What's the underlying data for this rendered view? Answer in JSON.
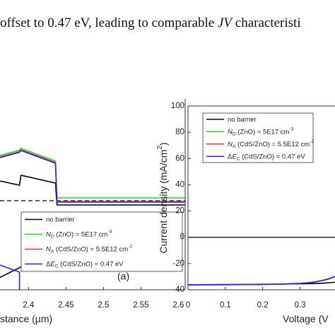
{
  "caption": [
    {
      "text": "offset to 0.47 eV, leading to comparable "
    },
    {
      "text": "JV",
      "style": "italic"
    },
    {
      "text": " characteristi"
    }
  ],
  "chart_data": [
    {
      "type": "line",
      "xlabel": [
        {
          "text": "stance (µm)"
        }
      ],
      "panel_label": "(a)",
      "xlim": [
        2.362,
        2.609
      ],
      "ylim": [
        -4.0,
        1.4
      ],
      "xticks": [
        2.4,
        2.45,
        2.5,
        2.55,
        2.6
      ],
      "hlines": [
        {
          "value": -1.48,
          "color": "#000000",
          "style": "dashed"
        }
      ],
      "legend": "lower right",
      "series": [
        {
          "name": [
            {
              "text": "no barrier"
            }
          ],
          "color": "#000000",
          "x": [
            2.362,
            2.388,
            2.39,
            2.436,
            2.438,
            2.609,
            null,
            2.362,
            2.4
          ],
          "values": [
            -0.92,
            -1.04,
            -0.76,
            -0.98,
            -1.6,
            -1.6,
            null,
            -3.65,
            -3.25
          ]
        },
        {
          "name": [
            {
              "text": "N",
              "style": "italic"
            },
            {
              "text": "D",
              "style": "sub"
            },
            {
              "text": " (ZnO) = 5E17 cm"
            },
            {
              "text": "-3",
              "style": "sup"
            }
          ],
          "color": "#22dd22",
          "x": [
            2.362,
            2.388,
            2.39,
            2.436,
            2.438,
            2.609
          ],
          "values": [
            -0.2,
            -0.05,
            0.0,
            -0.36,
            -1.4,
            -1.4
          ]
        },
        {
          "name": [
            {
              "text": "N",
              "style": "italic"
            },
            {
              "text": "A",
              "style": "sub"
            },
            {
              "text": " (CdS/ZnO) = 5.5E12 cm"
            },
            {
              "text": "-2",
              "style": "sup"
            }
          ],
          "color": "#ff3030",
          "x": [
            2.362,
            2.388,
            2.39,
            2.436,
            2.438,
            2.609
          ],
          "values": [
            -0.24,
            -0.09,
            -0.04,
            -0.4,
            -1.5,
            -1.5
          ]
        },
        {
          "name": [
            {
              "text": "Δ"
            },
            {
              "text": "E",
              "style": "italic"
            },
            {
              "text": "C",
              "style": "sub"
            },
            {
              "text": " (CdS/ZnO) = 0.47 eV"
            }
          ],
          "color": "#2222ff",
          "x": [
            2.362,
            2.388,
            2.39,
            2.436,
            2.438,
            2.609,
            null,
            2.362,
            2.388,
            2.388
          ],
          "values": [
            -0.26,
            -0.11,
            -0.06,
            -0.42,
            -1.52,
            -1.52,
            null,
            -3.3,
            -3.5,
            -4.0
          ]
        }
      ]
    },
    {
      "type": "line",
      "xlabel": [
        {
          "text": "Voltage (V"
        }
      ],
      "ylabel": [
        {
          "text": "Current density (mA/cm"
        },
        {
          "text": "2",
          "style": "sup"
        },
        {
          "text": ")"
        }
      ],
      "xlim": [
        0,
        0.405
      ],
      "ylim": [
        -40,
        100
      ],
      "xticks": [
        0,
        0.1,
        0.2,
        0.3
      ],
      "yticks": [
        -40,
        -20,
        0,
        20,
        40,
        60,
        80,
        100
      ],
      "hlines": [
        {
          "value": 0,
          "color": "#000000",
          "style": "solid"
        }
      ],
      "legend": "upper left",
      "x": [
        0,
        0.05,
        0.1,
        0.15,
        0.2,
        0.25,
        0.3,
        0.33,
        0.36,
        0.38,
        0.4
      ],
      "series": [
        {
          "name": [
            {
              "text": "no barrier"
            }
          ],
          "color": "#000000",
          "values": [
            -36.2,
            -36.1,
            -36.0,
            -35.9,
            -35.8,
            -35.7,
            -35.5,
            -35.3,
            -35.0,
            -34.6,
            -34.0
          ]
        },
        {
          "name": [
            {
              "text": "N",
              "style": "italic"
            },
            {
              "text": "D",
              "style": "sub"
            },
            {
              "text": " (ZnO) = 5E17 cm"
            },
            {
              "text": "-3",
              "style": "sup"
            }
          ],
          "color": "#22dd22",
          "values": [
            -36.2,
            -36.1,
            -36.0,
            -35.9,
            -35.8,
            -35.6,
            -35.1,
            -34.4,
            -32.9,
            -31.4,
            -28.9
          ]
        },
        {
          "name": [
            {
              "text": "N",
              "style": "italic"
            },
            {
              "text": "A",
              "style": "sub"
            },
            {
              "text": " (CdS/ZnO) = 5.5E12 cm"
            },
            {
              "text": "-2",
              "style": "sup"
            }
          ],
          "color": "#ff3030",
          "values": [
            -36.3,
            -36.2,
            -36.1,
            -36.0,
            -35.9,
            -35.7,
            -35.2,
            -34.5,
            -33.0,
            -31.5,
            -29.0
          ]
        },
        {
          "name": [
            {
              "text": "Δ"
            },
            {
              "text": "E",
              "style": "italic"
            },
            {
              "text": "C",
              "style": "sub"
            },
            {
              "text": " (CdS/ZnO) = 0.47 eV"
            }
          ],
          "color": "#2222ff",
          "values": [
            -36.3,
            -36.2,
            -36.1,
            -36.0,
            -35.9,
            -35.7,
            -35.2,
            -34.5,
            -33.0,
            -31.5,
            -29.0
          ]
        }
      ]
    }
  ]
}
